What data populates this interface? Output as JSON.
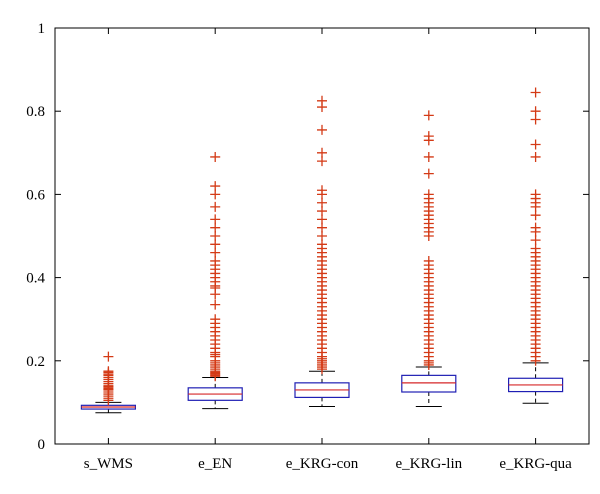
{
  "chart_data": {
    "type": "box",
    "title": "",
    "xlabel": "",
    "ylabel": "",
    "ylim": [
      0,
      1
    ],
    "yticks": [
      0,
      0.2,
      0.4,
      0.6,
      0.8,
      1
    ],
    "ytick_labels": [
      "0",
      "0.2",
      "0.4",
      "0.6",
      "0.8",
      "1"
    ],
    "grid": false,
    "colors": {
      "box": "#1f1fb4",
      "median": "#d62728",
      "outlier": "#d43a16",
      "axis": "#000000"
    },
    "categories": [
      "s_WMS",
      "e_EN",
      "e_KRG-con",
      "e_KRG-lin",
      "e_KRG-qua"
    ],
    "boxes": [
      {
        "name": "s_WMS",
        "whisker_low": 0.075,
        "q1": 0.084,
        "median": 0.089,
        "q3": 0.093,
        "whisker_high": 0.1,
        "outliers": [
          0.105,
          0.11,
          0.115,
          0.12,
          0.125,
          0.13,
          0.132,
          0.135,
          0.138,
          0.14,
          0.145,
          0.15,
          0.155,
          0.16,
          0.165,
          0.168,
          0.172,
          0.175,
          0.21
        ]
      },
      {
        "name": "e_EN",
        "whisker_low": 0.085,
        "q1": 0.105,
        "median": 0.12,
        "q3": 0.135,
        "whisker_high": 0.16,
        "outliers": [
          0.163,
          0.166,
          0.169,
          0.172,
          0.175,
          0.18,
          0.185,
          0.19,
          0.195,
          0.2,
          0.21,
          0.215,
          0.22,
          0.23,
          0.24,
          0.25,
          0.26,
          0.27,
          0.28,
          0.29,
          0.3,
          0.335,
          0.36,
          0.375,
          0.38,
          0.39,
          0.4,
          0.41,
          0.42,
          0.43,
          0.44,
          0.46,
          0.48,
          0.5,
          0.52,
          0.54,
          0.57,
          0.6,
          0.62,
          0.69
        ]
      },
      {
        "name": "e_KRG-con",
        "whisker_low": 0.09,
        "q1": 0.112,
        "median": 0.13,
        "q3": 0.147,
        "whisker_high": 0.175,
        "outliers": [
          0.18,
          0.185,
          0.19,
          0.195,
          0.2,
          0.205,
          0.21,
          0.22,
          0.23,
          0.24,
          0.25,
          0.26,
          0.27,
          0.28,
          0.29,
          0.3,
          0.31,
          0.32,
          0.33,
          0.34,
          0.35,
          0.36,
          0.37,
          0.38,
          0.39,
          0.4,
          0.41,
          0.42,
          0.43,
          0.44,
          0.45,
          0.46,
          0.47,
          0.48,
          0.5,
          0.52,
          0.54,
          0.56,
          0.58,
          0.6,
          0.61,
          0.68,
          0.7,
          0.755,
          0.81,
          0.825
        ]
      },
      {
        "name": "e_KRG-lin",
        "whisker_low": 0.09,
        "q1": 0.125,
        "median": 0.147,
        "q3": 0.165,
        "whisker_high": 0.185,
        "outliers": [
          0.19,
          0.195,
          0.2,
          0.21,
          0.22,
          0.23,
          0.24,
          0.25,
          0.26,
          0.27,
          0.28,
          0.29,
          0.3,
          0.31,
          0.32,
          0.33,
          0.34,
          0.35,
          0.36,
          0.37,
          0.38,
          0.39,
          0.4,
          0.41,
          0.42,
          0.43,
          0.44,
          0.5,
          0.51,
          0.52,
          0.53,
          0.54,
          0.55,
          0.56,
          0.57,
          0.58,
          0.59,
          0.6,
          0.65,
          0.69,
          0.73,
          0.74,
          0.79
        ]
      },
      {
        "name": "e_KRG-qua",
        "whisker_low": 0.098,
        "q1": 0.126,
        "median": 0.142,
        "q3": 0.158,
        "whisker_high": 0.195,
        "outliers": [
          0.2,
          0.21,
          0.22,
          0.23,
          0.24,
          0.25,
          0.26,
          0.27,
          0.28,
          0.29,
          0.3,
          0.31,
          0.32,
          0.33,
          0.34,
          0.35,
          0.36,
          0.37,
          0.38,
          0.39,
          0.4,
          0.41,
          0.42,
          0.43,
          0.44,
          0.45,
          0.46,
          0.47,
          0.49,
          0.51,
          0.52,
          0.55,
          0.57,
          0.58,
          0.59,
          0.6,
          0.69,
          0.72,
          0.78,
          0.8,
          0.845
        ]
      }
    ]
  }
}
